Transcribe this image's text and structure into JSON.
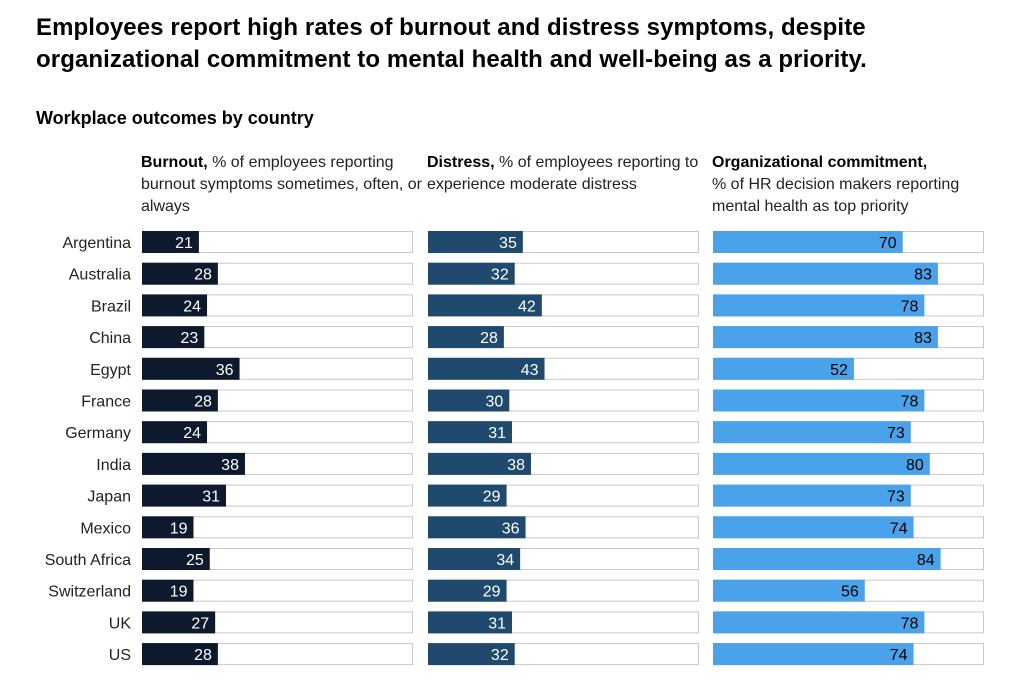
{
  "title": "Employees report high rates of burnout and distress symptoms, despite organizational commitment to mental health and well-being as a priority.",
  "subtitle": "Workplace outcomes by country",
  "colors": {
    "burnout": "#0d1a2d",
    "distress": "#1f4a6e",
    "commitment": "#4aa3ea",
    "track_border": "#c8c8c8"
  },
  "chart_data": {
    "type": "bar",
    "orientation": "horizontal",
    "categories": [
      "Argentina",
      "Australia",
      "Brazil",
      "China",
      "Egypt",
      "France",
      "Germany",
      "India",
      "Japan",
      "Mexico",
      "South Africa",
      "Switzerland",
      "UK",
      "US"
    ],
    "xlim": [
      0,
      100
    ],
    "grid": false,
    "series": [
      {
        "name": "Burnout",
        "header_bold": "Burnout,",
        "header_rest": "% of employees reporting burnout symptoms sometimes, often, or always",
        "values": [
          21,
          28,
          24,
          23,
          36,
          28,
          24,
          38,
          31,
          19,
          25,
          19,
          27,
          28
        ]
      },
      {
        "name": "Distress",
        "header_bold": "Distress,",
        "header_rest": "% of employees reporting to experience moderate distress",
        "values": [
          35,
          32,
          42,
          28,
          43,
          30,
          31,
          38,
          29,
          36,
          34,
          29,
          31,
          32
        ]
      },
      {
        "name": "Organizational commitment",
        "header_bold": "Organizational commitment,",
        "header_rest": "% of HR decision makers reporting mental health as top priority",
        "values": [
          70,
          83,
          78,
          83,
          52,
          78,
          73,
          80,
          73,
          74,
          84,
          56,
          78,
          74
        ]
      }
    ]
  }
}
